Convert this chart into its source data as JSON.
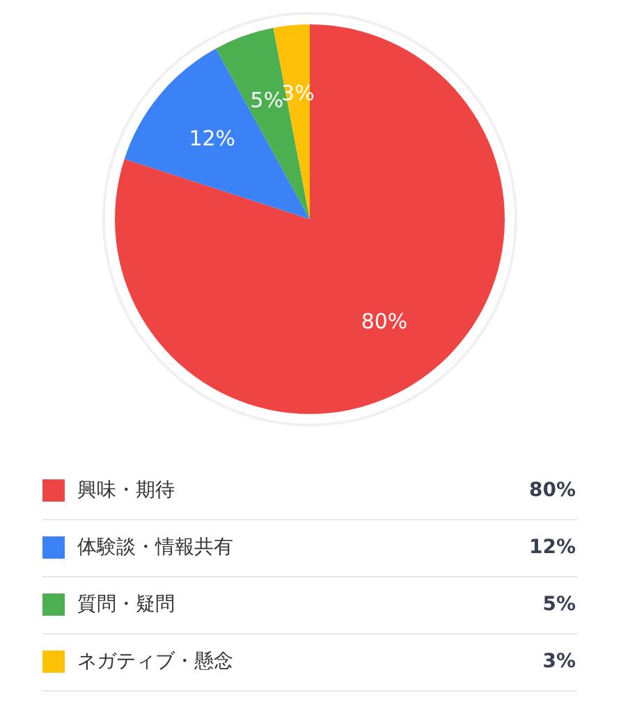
{
  "chart_data": {
    "type": "pie",
    "categories": [
      "興味・期待",
      "体験談・情報共有",
      "質問・疑問",
      "ネガティブ・懸念"
    ],
    "values": [
      80,
      12,
      5,
      3
    ],
    "colors": [
      "#ef4444",
      "#3b82f6",
      "#4caf50",
      "#ffc107"
    ],
    "value_labels": [
      "80%",
      "12%",
      "5%",
      "3%"
    ],
    "legend": "bottom"
  }
}
